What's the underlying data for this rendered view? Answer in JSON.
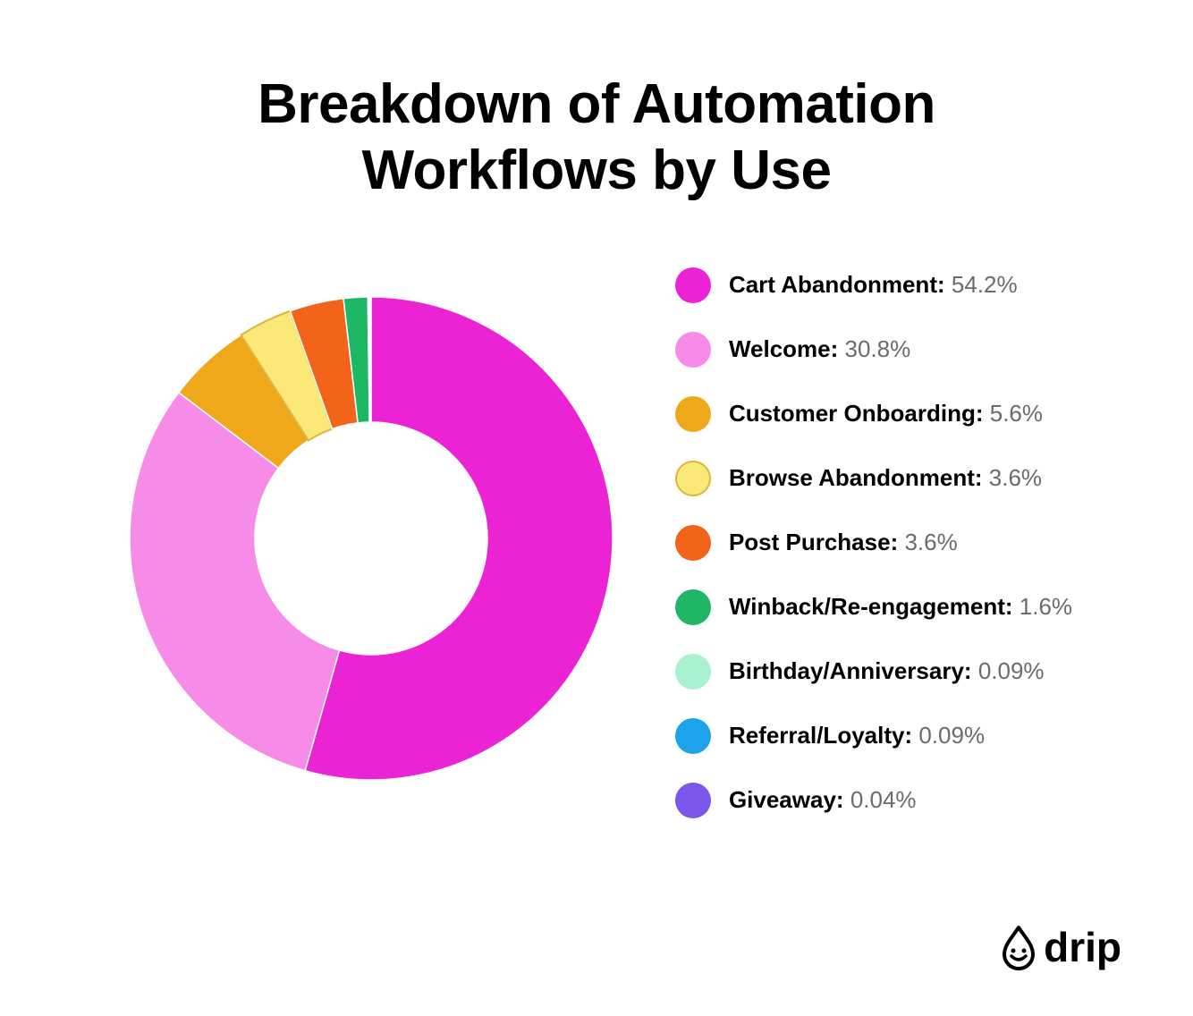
{
  "title": "Breakdown of Automation Workflows by Use",
  "brand": "drip",
  "chart": {
    "type": "donut",
    "background_color": "#ffffff",
    "outer_radius": 270,
    "inner_radius": 130,
    "start_angle_deg": 0,
    "direction": "clockwise",
    "title_fontsize": 62,
    "legend_fontsize": 26,
    "legend_swatch_size": 40,
    "stroke_color": "#ffffff",
    "stroke_width": 1.5,
    "items": [
      {
        "label": "Cart Abandonment",
        "value": 54.2,
        "display": "54.2%",
        "color": "#ec23d5"
      },
      {
        "label": "Welcome",
        "value": 30.8,
        "display": "30.8%",
        "color": "#f68be8"
      },
      {
        "label": "Customer Onboarding",
        "value": 5.6,
        "display": "5.6%",
        "color": "#f0a81b"
      },
      {
        "label": "Browse Abandonment",
        "value": 3.6,
        "display": "3.6%",
        "color": "#fce876"
      },
      {
        "label": "Post Purchase",
        "value": 3.6,
        "display": "3.6%",
        "color": "#f26419"
      },
      {
        "label": "Winback/Re-engagement",
        "value": 1.6,
        "display": "1.6%",
        "color": "#1db765"
      },
      {
        "label": "Birthday/Anniversary",
        "value": 0.09,
        "display": "0.09%",
        "color": "#a8f2cf"
      },
      {
        "label": "Referral/Loyalty",
        "value": 0.09,
        "display": "0.09%",
        "color": "#1ca3ec"
      },
      {
        "label": "Giveaway",
        "value": 0.04,
        "display": "0.04%",
        "color": "#7a57e8"
      }
    ],
    "browse_abandonment_stroke": "#d9b844"
  }
}
